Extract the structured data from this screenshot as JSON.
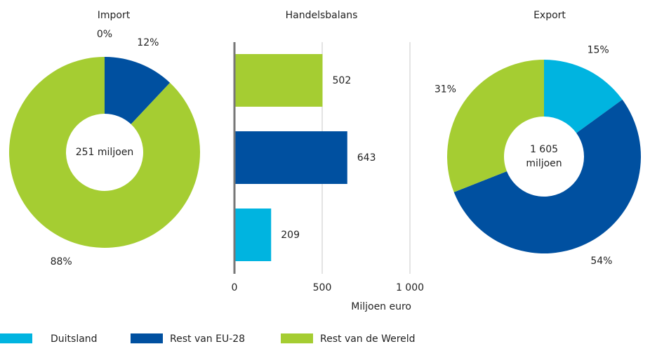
{
  "chart_data": [
    {
      "type": "pie",
      "title": "Import",
      "values": [
        0,
        12,
        88
      ],
      "value_labels": [
        "0%",
        "12%",
        "88%"
      ],
      "colors": [
        "#00b4e0",
        "#0050a0",
        "#a5cd32"
      ],
      "center_label": [
        "251 miljoen"
      ]
    },
    {
      "type": "bar",
      "orientation": "horizontal",
      "title": "Handelsbalans",
      "xlabel": "Miljoen euro",
      "categories": [
        null,
        null,
        null
      ],
      "values": [
        502,
        643,
        209
      ],
      "colors": [
        "#a5cd32",
        "#0050a0",
        "#00b4e0"
      ],
      "xlim": [
        0,
        1000
      ],
      "xticks": [
        0,
        500,
        {
          "value": 1000,
          "label": "1 000"
        }
      ],
      "grid": true
    },
    {
      "type": "pie",
      "title": "Export",
      "values": [
        15,
        54,
        31
      ],
      "value_labels": [
        "15%",
        "54%",
        "31%"
      ],
      "colors": [
        "#00b4e0",
        "#0050a0",
        "#a5cd32"
      ],
      "center_label": [
        "1 605",
        "miljoen"
      ]
    }
  ],
  "legend": [
    {
      "name": "Duitsland",
      "color": "#00b4e0"
    },
    {
      "name": "Rest van EU-28",
      "color": "#0050a0"
    },
    {
      "name": "Rest van de Wereld",
      "color": "#a5cd32"
    }
  ]
}
